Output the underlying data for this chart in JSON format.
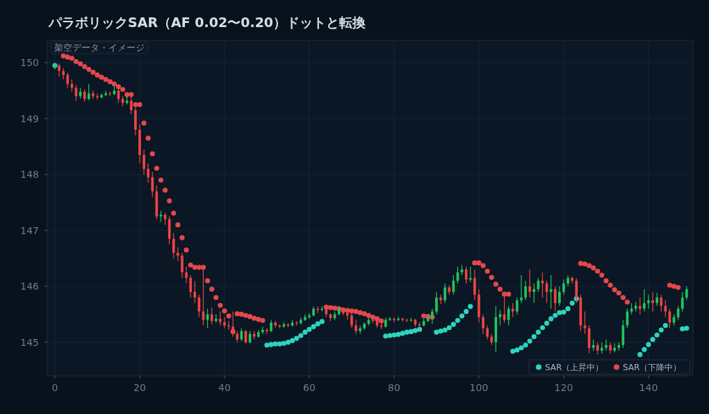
{
  "chart_data": {
    "type": "candlestick",
    "title": "パラボリックSAR（AF 0.02〜0.20）ドットと転換",
    "annotations": [
      "架空データ・イメージ"
    ],
    "xlim": [
      -1.8,
      150.5
    ],
    "xticks": [
      0,
      20,
      40,
      60,
      80,
      100,
      120,
      140
    ],
    "ylim": [
      144.4,
      150.4
    ],
    "yticks": [
      145,
      146,
      147,
      148,
      149,
      150
    ],
    "grid": true,
    "legend": "bottom right",
    "x": [
      0,
      1,
      2,
      3,
      4,
      5,
      6,
      7,
      8,
      9,
      10,
      11,
      12,
      13,
      14,
      15,
      16,
      17,
      18,
      19,
      20,
      21,
      22,
      23,
      24,
      25,
      26,
      27,
      28,
      29,
      30,
      31,
      32,
      33,
      34,
      35,
      36,
      37,
      38,
      39,
      40,
      41,
      42,
      43,
      44,
      45,
      46,
      47,
      48,
      49,
      50,
      51,
      52,
      53,
      54,
      55,
      56,
      57,
      58,
      59,
      60,
      61,
      62,
      63,
      64,
      65,
      66,
      67,
      68,
      69,
      70,
      71,
      72,
      73,
      74,
      75,
      76,
      77,
      78,
      79,
      80,
      81,
      82,
      83,
      84,
      85,
      86,
      87,
      88,
      89,
      90,
      91,
      92,
      93,
      94,
      95,
      96,
      97,
      98,
      99,
      100,
      101,
      102,
      103,
      104,
      105,
      106,
      107,
      108,
      109,
      110,
      111,
      112,
      113,
      114,
      115,
      116,
      117,
      118,
      119,
      120,
      121,
      122,
      123,
      124,
      125,
      126,
      127,
      128,
      129,
      130,
      131,
      132,
      133,
      134,
      135,
      136,
      137,
      138,
      139,
      140,
      141,
      142,
      143,
      144,
      145,
      146,
      147,
      148,
      149
    ],
    "ohlc": [
      [
        149.92,
        150.0,
        149.88,
        149.95
      ],
      [
        149.95,
        149.98,
        149.75,
        149.85
      ],
      [
        149.85,
        149.9,
        149.7,
        149.78
      ],
      [
        149.78,
        149.82,
        149.55,
        149.62
      ],
      [
        149.62,
        149.7,
        149.48,
        149.55
      ],
      [
        149.55,
        149.6,
        149.32,
        149.4
      ],
      [
        149.4,
        149.55,
        149.36,
        149.48
      ],
      [
        149.48,
        149.52,
        149.3,
        149.35
      ],
      [
        149.35,
        149.62,
        149.33,
        149.45
      ],
      [
        149.45,
        149.5,
        149.35,
        149.4
      ],
      [
        149.4,
        149.45,
        149.34,
        149.38
      ],
      [
        149.38,
        149.45,
        149.36,
        149.42
      ],
      [
        149.42,
        149.5,
        149.4,
        149.45
      ],
      [
        149.45,
        149.48,
        149.4,
        149.44
      ],
      [
        149.44,
        149.58,
        149.42,
        149.5
      ],
      [
        149.5,
        149.55,
        149.28,
        149.35
      ],
      [
        149.35,
        149.4,
        149.22,
        149.28
      ],
      [
        149.28,
        149.4,
        149.25,
        149.32
      ],
      [
        149.32,
        149.42,
        149.08,
        149.15
      ],
      [
        149.15,
        149.2,
        148.7,
        148.8
      ],
      [
        148.8,
        148.9,
        148.2,
        148.35
      ],
      [
        148.35,
        148.45,
        148.0,
        148.1
      ],
      [
        148.1,
        148.2,
        147.85,
        147.95
      ],
      [
        147.95,
        148.05,
        147.6,
        147.7
      ],
      [
        147.7,
        147.8,
        147.2,
        147.25
      ],
      [
        147.25,
        147.35,
        147.15,
        147.28
      ],
      [
        147.28,
        147.32,
        147.1,
        147.2
      ],
      [
        147.2,
        147.25,
        146.75,
        146.85
      ],
      [
        146.85,
        146.95,
        146.5,
        146.6
      ],
      [
        146.6,
        146.7,
        146.45,
        146.55
      ],
      [
        146.55,
        146.6,
        146.15,
        146.25
      ],
      [
        146.25,
        146.35,
        146.05,
        146.15
      ],
      [
        146.15,
        146.2,
        145.8,
        145.9
      ],
      [
        145.9,
        146.1,
        145.7,
        145.8
      ],
      [
        145.8,
        145.85,
        145.45,
        145.55
      ],
      [
        145.55,
        146.35,
        145.3,
        145.4
      ],
      [
        145.4,
        145.6,
        145.25,
        145.5
      ],
      [
        145.5,
        145.62,
        145.32,
        145.38
      ],
      [
        145.38,
        145.5,
        145.35,
        145.42
      ],
      [
        145.42,
        145.55,
        145.3,
        145.36
      ],
      [
        145.36,
        145.45,
        145.25,
        145.3
      ],
      [
        145.3,
        145.38,
        145.22,
        145.28
      ],
      [
        145.28,
        145.55,
        145.1,
        145.15
      ],
      [
        145.15,
        145.2,
        145.0,
        145.05
      ],
      [
        145.05,
        145.25,
        145.02,
        145.2
      ],
      [
        145.2,
        145.22,
        144.98,
        145.0
      ],
      [
        145.0,
        145.2,
        144.98,
        145.15
      ],
      [
        145.15,
        145.2,
        145.05,
        145.1
      ],
      [
        145.1,
        145.22,
        145.08,
        145.18
      ],
      [
        145.18,
        145.28,
        145.15,
        145.22
      ],
      [
        145.22,
        145.25,
        145.15,
        145.2
      ],
      [
        145.2,
        145.4,
        145.18,
        145.35
      ],
      [
        145.35,
        145.38,
        145.26,
        145.3
      ],
      [
        145.3,
        145.32,
        145.25,
        145.28
      ],
      [
        145.28,
        145.36,
        145.26,
        145.32
      ],
      [
        145.32,
        145.34,
        145.27,
        145.3
      ],
      [
        145.3,
        145.4,
        145.28,
        145.35
      ],
      [
        145.35,
        145.38,
        145.3,
        145.34
      ],
      [
        145.34,
        145.44,
        145.32,
        145.4
      ],
      [
        145.4,
        145.5,
        145.38,
        145.45
      ],
      [
        145.45,
        145.52,
        145.42,
        145.48
      ],
      [
        145.48,
        145.64,
        145.46,
        145.6
      ],
      [
        145.6,
        145.64,
        145.52,
        145.58
      ],
      [
        145.58,
        145.65,
        145.55,
        145.6
      ],
      [
        145.6,
        145.62,
        145.45,
        145.5
      ],
      [
        145.5,
        145.52,
        145.38,
        145.43
      ],
      [
        145.43,
        145.55,
        145.4,
        145.5
      ],
      [
        145.5,
        145.64,
        145.48,
        145.6
      ],
      [
        145.6,
        145.62,
        145.48,
        145.52
      ],
      [
        145.52,
        145.58,
        145.4,
        145.48
      ],
      [
        145.48,
        145.52,
        145.25,
        145.3
      ],
      [
        145.3,
        145.4,
        145.15,
        145.2
      ],
      [
        145.2,
        145.3,
        145.15,
        145.25
      ],
      [
        145.25,
        145.36,
        145.22,
        145.33
      ],
      [
        145.33,
        145.45,
        145.3,
        145.4
      ],
      [
        145.4,
        145.42,
        145.34,
        145.38
      ],
      [
        145.38,
        145.4,
        145.26,
        145.3
      ],
      [
        145.3,
        145.35,
        145.24,
        145.28
      ],
      [
        145.28,
        145.44,
        145.26,
        145.4
      ],
      [
        145.4,
        145.45,
        145.38,
        145.42
      ],
      [
        145.42,
        145.44,
        145.36,
        145.4
      ],
      [
        145.4,
        145.46,
        145.38,
        145.42
      ],
      [
        145.42,
        145.44,
        145.37,
        145.4
      ],
      [
        145.4,
        145.42,
        145.36,
        145.39
      ],
      [
        145.39,
        145.44,
        145.37,
        145.4
      ],
      [
        145.4,
        145.42,
        145.28,
        145.32
      ],
      [
        145.32,
        145.36,
        145.26,
        145.3
      ],
      [
        145.3,
        145.42,
        145.28,
        145.38
      ],
      [
        145.38,
        145.5,
        145.36,
        145.45
      ],
      [
        145.45,
        145.6,
        145.33,
        145.55
      ],
      [
        145.55,
        145.9,
        145.5,
        145.8
      ],
      [
        145.8,
        145.85,
        145.68,
        145.75
      ],
      [
        145.75,
        146.05,
        145.7,
        145.98
      ],
      [
        145.98,
        146.02,
        145.85,
        145.9
      ],
      [
        145.9,
        146.2,
        145.85,
        146.1
      ],
      [
        146.1,
        146.35,
        146.05,
        146.25
      ],
      [
        146.25,
        146.38,
        146.2,
        146.3
      ],
      [
        146.3,
        146.35,
        146.05,
        146.12
      ],
      [
        146.12,
        146.35,
        146.08,
        146.15
      ],
      [
        146.15,
        146.3,
        145.75,
        145.85
      ],
      [
        145.85,
        145.95,
        145.35,
        145.45
      ],
      [
        145.45,
        145.5,
        145.15,
        145.25
      ],
      [
        145.25,
        145.3,
        145.05,
        145.1
      ],
      [
        145.1,
        145.15,
        144.95,
        145.0
      ],
      [
        145.0,
        145.65,
        144.82,
        145.45
      ],
      [
        145.45,
        145.58,
        145.3,
        145.5
      ],
      [
        145.5,
        145.85,
        145.35,
        145.4
      ],
      [
        145.4,
        145.65,
        145.3,
        145.6
      ],
      [
        145.6,
        145.7,
        145.45,
        145.55
      ],
      [
        145.55,
        145.8,
        145.5,
        145.75
      ],
      [
        145.75,
        146.2,
        145.7,
        145.8
      ],
      [
        145.8,
        146.1,
        145.75,
        146.0
      ],
      [
        146.0,
        146.3,
        145.8,
        145.9
      ],
      [
        145.9,
        146.05,
        145.7,
        145.95
      ],
      [
        145.95,
        146.15,
        145.9,
        146.1
      ],
      [
        146.1,
        146.25,
        145.8,
        146.05
      ],
      [
        146.05,
        146.1,
        145.7,
        145.9
      ],
      [
        145.9,
        146.2,
        145.6,
        145.95
      ],
      [
        145.95,
        146.0,
        145.55,
        145.7
      ],
      [
        145.7,
        146.0,
        145.65,
        145.9
      ],
      [
        145.9,
        146.12,
        145.85,
        146.05
      ],
      [
        146.05,
        146.2,
        146.0,
        146.15
      ],
      [
        146.15,
        146.18,
        146.05,
        146.1
      ],
      [
        146.1,
        146.15,
        145.7,
        145.8
      ],
      [
        145.8,
        145.85,
        145.2,
        145.3
      ],
      [
        145.3,
        145.55,
        145.15,
        145.25
      ],
      [
        145.25,
        145.3,
        144.8,
        144.9
      ],
      [
        144.9,
        145.05,
        144.85,
        144.95
      ],
      [
        144.95,
        145.0,
        144.78,
        144.85
      ],
      [
        144.85,
        145.0,
        144.8,
        144.9
      ],
      [
        144.9,
        145.05,
        144.85,
        144.95
      ],
      [
        144.95,
        145.0,
        144.8,
        144.85
      ],
      [
        144.85,
        144.98,
        144.82,
        144.9
      ],
      [
        144.9,
        145.0,
        144.85,
        144.95
      ],
      [
        144.95,
        145.4,
        144.9,
        145.3
      ],
      [
        145.3,
        145.6,
        145.25,
        145.55
      ],
      [
        145.55,
        145.7,
        145.5,
        145.6
      ],
      [
        145.6,
        145.72,
        145.55,
        145.65
      ],
      [
        145.65,
        145.8,
        145.5,
        145.6
      ],
      [
        145.6,
        145.95,
        145.55,
        145.7
      ],
      [
        145.7,
        145.85,
        145.6,
        145.75
      ],
      [
        145.75,
        145.9,
        145.55,
        145.7
      ],
      [
        145.7,
        145.88,
        145.65,
        145.8
      ],
      [
        145.8,
        145.85,
        145.55,
        145.65
      ],
      [
        145.65,
        145.75,
        145.45,
        145.55
      ],
      [
        145.55,
        145.6,
        145.25,
        145.35
      ],
      [
        145.35,
        145.5,
        145.3,
        145.45
      ],
      [
        145.45,
        145.65,
        145.4,
        145.6
      ],
      [
        145.6,
        145.9,
        145.55,
        145.8
      ],
      [
        145.8,
        146.0,
        145.75,
        145.95
      ]
    ],
    "colors": [
      "#22c55e",
      "#ef4444",
      "#ef4444",
      "#ef4444",
      "#ef4444",
      "#ef4444",
      "#22c55e",
      "#ef4444",
      "#22c55e",
      "#ef4444",
      "#ef4444",
      "#22c55e",
      "#22c55e",
      "#ef4444",
      "#22c55e",
      "#ef4444",
      "#ef4444",
      "#22c55e",
      "#ef4444",
      "#ef4444",
      "#ef4444",
      "#ef4444",
      "#ef4444",
      "#ef4444",
      "#ef4444",
      "#22c55e",
      "#ef4444",
      "#ef4444",
      "#ef4444",
      "#ef4444",
      "#ef4444",
      "#ef4444",
      "#ef4444",
      "#ef4444",
      "#ef4444",
      "#ef4444",
      "#22c55e",
      "#ef4444",
      "#22c55e",
      "#ef4444",
      "#ef4444",
      "#ef4444",
      "#ef4444",
      "#ef4444",
      "#22c55e",
      "#ef4444",
      "#22c55e",
      "#ef4444",
      "#22c55e",
      "#22c55e",
      "#ef4444",
      "#22c55e",
      "#ef4444",
      "#ef4444",
      "#22c55e",
      "#ef4444",
      "#22c55e",
      "#ef4444",
      "#22c55e",
      "#22c55e",
      "#22c55e",
      "#22c55e",
      "#ef4444",
      "#22c55e",
      "#ef4444",
      "#ef4444",
      "#22c55e",
      "#22c55e",
      "#ef4444",
      "#ef4444",
      "#ef4444",
      "#ef4444",
      "#22c55e",
      "#22c55e",
      "#22c55e",
      "#ef4444",
      "#ef4444",
      "#ef4444",
      "#22c55e",
      "#22c55e",
      "#ef4444",
      "#22c55e",
      "#ef4444",
      "#ef4444",
      "#22c55e",
      "#ef4444",
      "#ef4444",
      "#22c55e",
      "#22c55e",
      "#22c55e",
      "#22c55e",
      "#ef4444",
      "#22c55e",
      "#ef4444",
      "#22c55e",
      "#22c55e",
      "#22c55e",
      "#ef4444",
      "#22c55e",
      "#ef4444",
      "#ef4444",
      "#ef4444",
      "#ef4444",
      "#ef4444",
      "#22c55e",
      "#22c55e",
      "#ef4444",
      "#22c55e",
      "#ef4444",
      "#22c55e",
      "#22c55e",
      "#22c55e",
      "#ef4444",
      "#22c55e",
      "#22c55e",
      "#ef4444",
      "#ef4444",
      "#22c55e",
      "#ef4444",
      "#22c55e",
      "#22c55e",
      "#22c55e",
      "#ef4444",
      "#ef4444",
      "#ef4444",
      "#ef4444",
      "#ef4444",
      "#22c55e",
      "#ef4444",
      "#22c55e",
      "#22c55e",
      "#ef4444",
      "#22c55e",
      "#22c55e",
      "#22c55e",
      "#22c55e",
      "#22c55e",
      "#22c55e",
      "#ef4444",
      "#22c55e",
      "#22c55e",
      "#ef4444",
      "#22c55e",
      "#ef4444",
      "#ef4444",
      "#ef4444",
      "#22c55e",
      "#22c55e",
      "#22c55e",
      "#22c55e"
    ],
    "series": [
      {
        "type": "scatter",
        "name": "SAR（上昇中）",
        "color": "#2dd4bf",
        "marker": "circle",
        "x": [
          0,
          50,
          51,
          52,
          53,
          54,
          55,
          56,
          57,
          58,
          59,
          60,
          61,
          62,
          63,
          78,
          79,
          80,
          81,
          82,
          83,
          84,
          85,
          86,
          90,
          91,
          92,
          93,
          94,
          95,
          96,
          97,
          98,
          108,
          109,
          110,
          111,
          112,
          113,
          114,
          115,
          116,
          117,
          118,
          119,
          120,
          121,
          122,
          123,
          138,
          139,
          140,
          141,
          142,
          143,
          144,
          148,
          149
        ],
        "values": [
          149.95,
          144.95,
          144.96,
          144.97,
          144.97,
          144.98,
          145.0,
          145.03,
          145.07,
          145.12,
          145.18,
          145.23,
          145.28,
          145.33,
          145.37,
          145.11,
          145.12,
          145.13,
          145.14,
          145.16,
          145.18,
          145.19,
          145.21,
          145.23,
          145.18,
          145.2,
          145.22,
          145.26,
          145.32,
          145.39,
          145.47,
          145.55,
          145.64,
          144.84,
          144.86,
          144.9,
          144.95,
          145.02,
          145.1,
          145.18,
          145.26,
          145.34,
          145.42,
          145.48,
          145.53,
          145.54,
          145.6,
          145.7,
          145.78,
          144.78,
          144.87,
          144.96,
          145.05,
          145.13,
          145.22,
          145.3,
          145.24,
          145.25
        ]
      },
      {
        "type": "scatter",
        "name": "SAR（下降中）",
        "color": "#e5484d",
        "marker": "circle",
        "x": [
          2,
          3,
          4,
          5,
          6,
          7,
          8,
          9,
          10,
          11,
          12,
          13,
          14,
          15,
          16,
          17,
          18,
          19,
          20,
          21,
          22,
          23,
          24,
          25,
          26,
          27,
          28,
          29,
          30,
          31,
          32,
          33,
          34,
          35,
          36,
          37,
          38,
          39,
          40,
          41,
          42,
          43,
          44,
          45,
          46,
          47,
          48,
          49,
          64,
          65,
          66,
          67,
          68,
          69,
          70,
          71,
          72,
          73,
          74,
          75,
          76,
          77,
          87,
          88,
          89,
          99,
          100,
          101,
          102,
          103,
          104,
          105,
          106,
          107,
          124,
          125,
          126,
          127,
          128,
          129,
          130,
          131,
          132,
          133,
          134,
          135,
          145,
          146,
          147
        ],
        "values": [
          150.12,
          150.1,
          150.08,
          150.02,
          149.98,
          149.93,
          149.88,
          149.83,
          149.78,
          149.74,
          149.7,
          149.66,
          149.62,
          149.57,
          149.52,
          149.43,
          149.43,
          149.25,
          149.25,
          148.92,
          148.65,
          148.37,
          148.11,
          147.9,
          147.72,
          147.53,
          147.31,
          147.1,
          146.87,
          146.65,
          146.38,
          146.34,
          146.34,
          146.34,
          146.1,
          145.95,
          145.8,
          145.66,
          145.56,
          145.47,
          145.19,
          145.51,
          145.5,
          145.48,
          145.46,
          145.43,
          145.41,
          145.39,
          145.63,
          145.62,
          145.61,
          145.6,
          145.58,
          145.57,
          145.56,
          145.55,
          145.53,
          145.51,
          145.48,
          145.45,
          145.42,
          145.38,
          145.47,
          145.46,
          145.45,
          146.42,
          146.42,
          146.37,
          146.27,
          146.16,
          146.04,
          145.95,
          145.86,
          145.86,
          146.41,
          146.4,
          146.37,
          146.33,
          146.27,
          146.2,
          146.1,
          146.02,
          145.94,
          145.88,
          145.8,
          145.72,
          146.02,
          146.0,
          145.98
        ]
      }
    ]
  }
}
